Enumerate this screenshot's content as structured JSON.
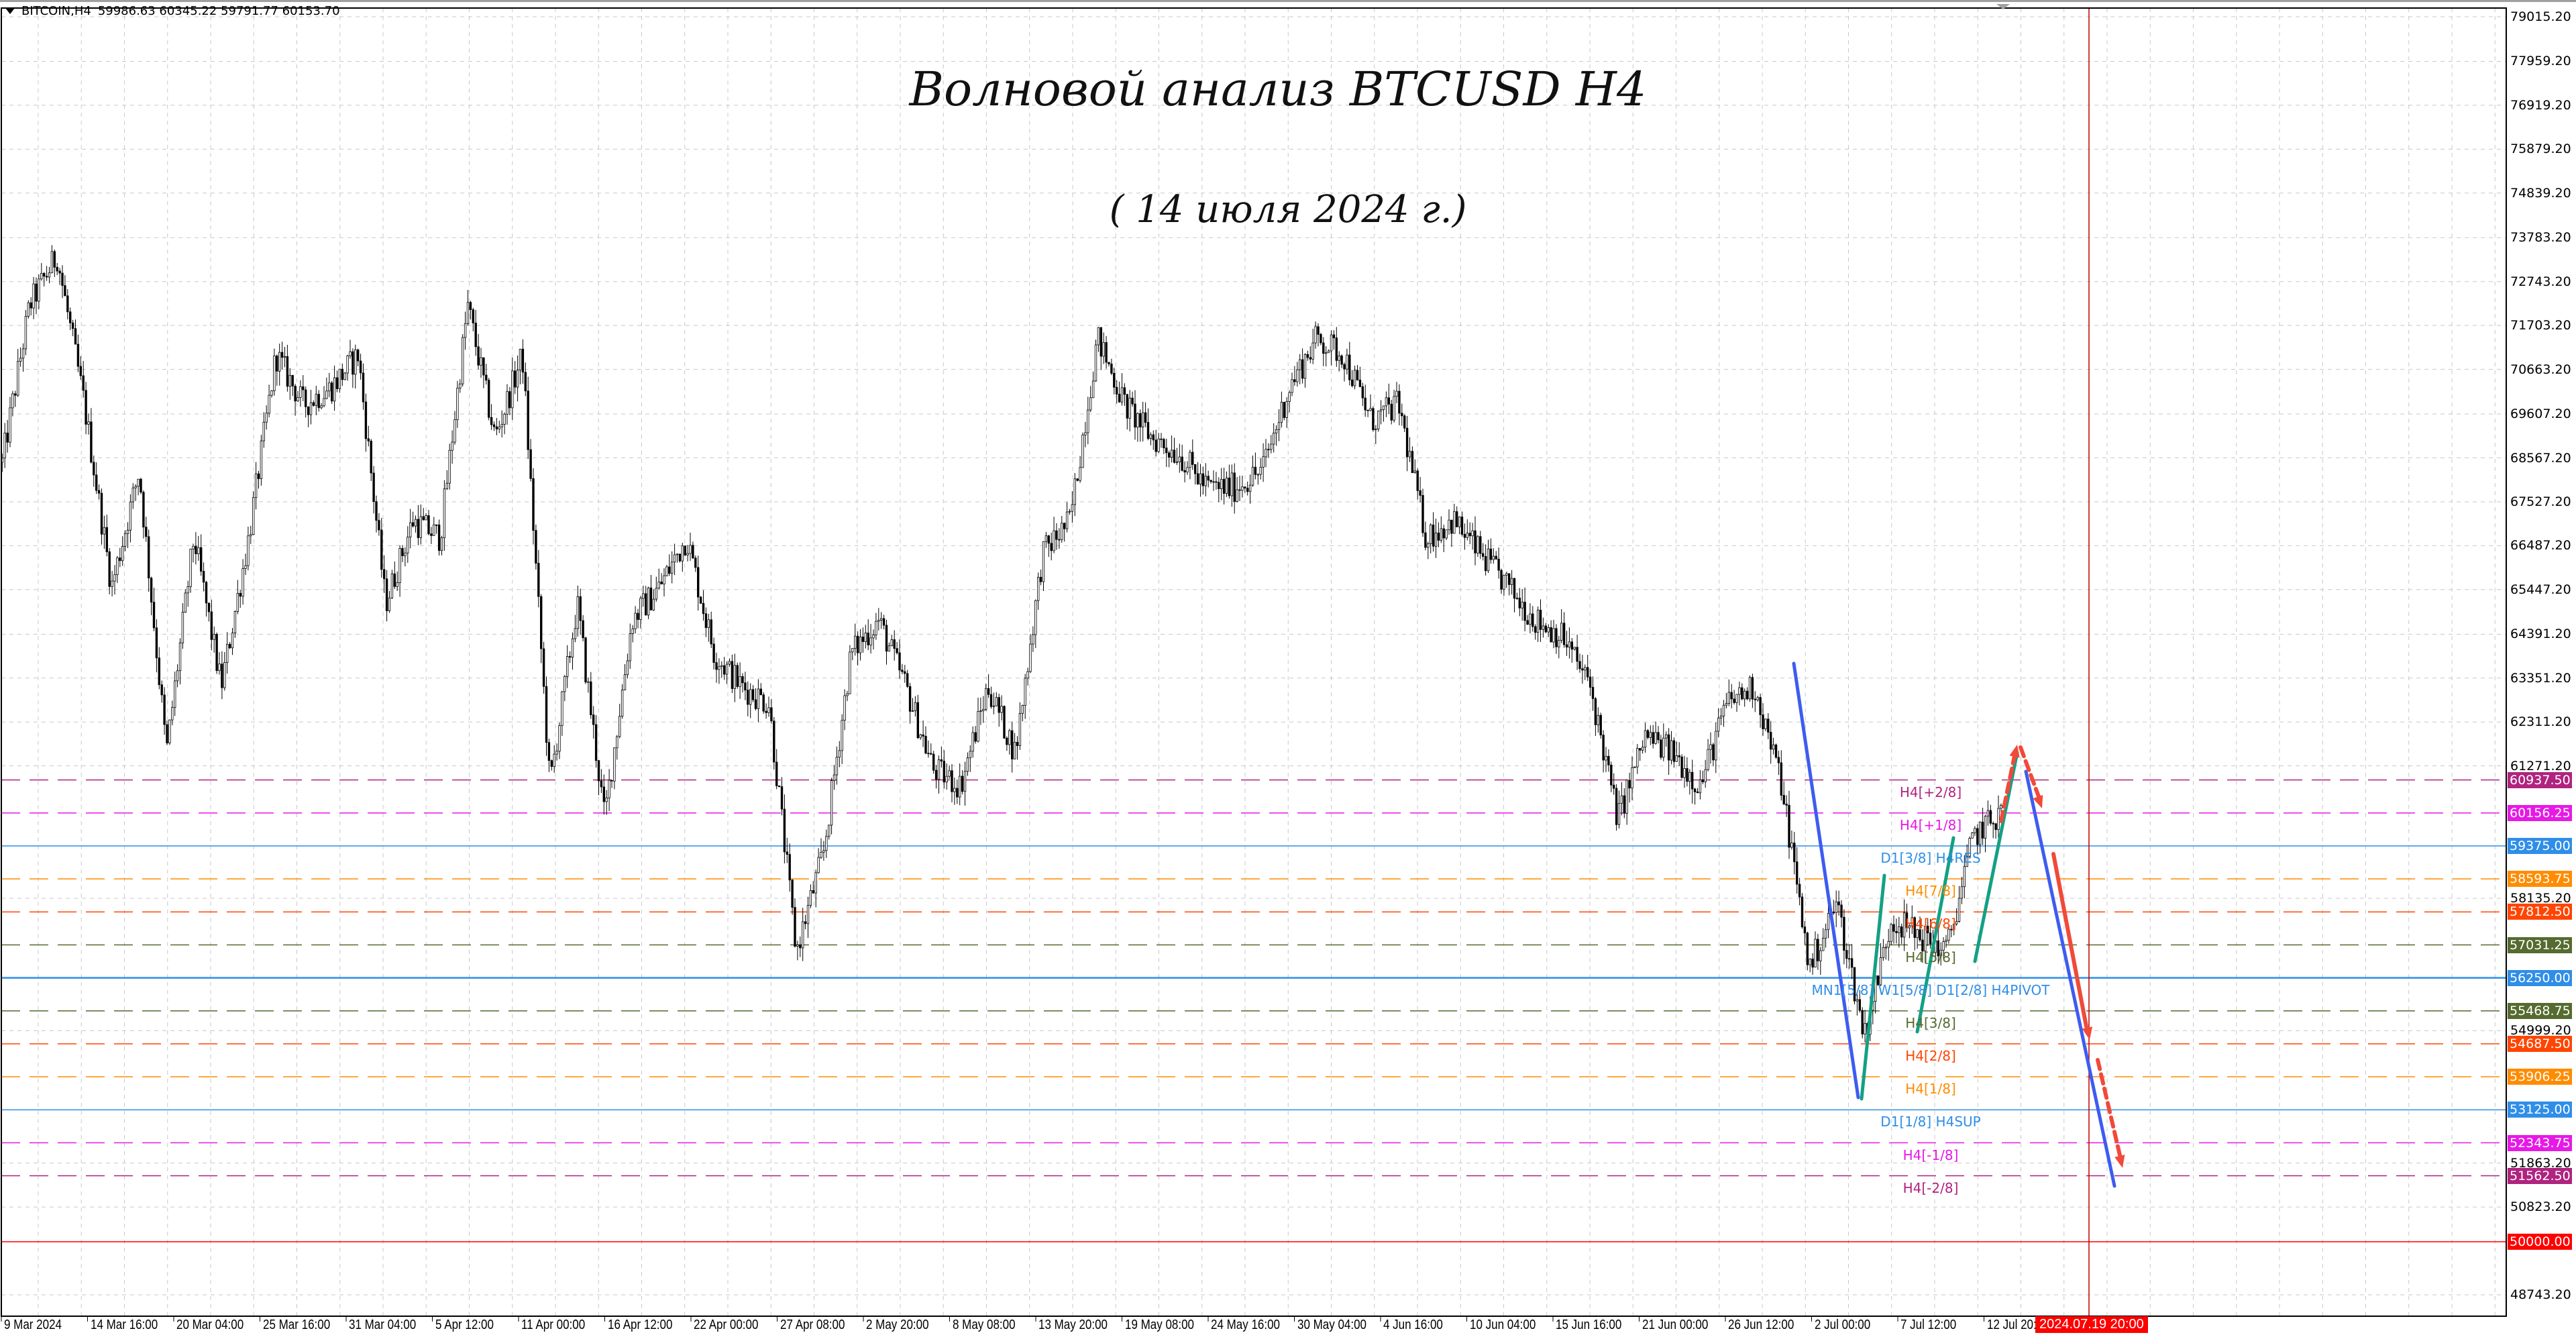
{
  "header": {
    "symbol": "BITCOIN,H4",
    "ohlc": "59986.63 60345.22 59791.77 60153.70",
    "menu_icon": "triangle-down-icon"
  },
  "annotations": {
    "title": "Волновой анализ BTCUSD H4",
    "subtitle": "( 14 июля 2024 г.)"
  },
  "price_axis": {
    "labels": [
      "79015.20",
      "77959.20",
      "76919.20",
      "75879.20",
      "74839.20",
      "73783.20",
      "72743.20",
      "71703.20",
      "70663.20",
      "69607.20",
      "68567.20",
      "67527.20",
      "66487.20",
      "65447.20",
      "64391.20",
      "63351.20",
      "62311.20",
      "61271.20",
      "58135.20",
      "54999.20",
      "51863.20",
      "50823.20",
      "48743.20"
    ]
  },
  "levels": [
    {
      "price": "60937.50",
      "label": "H4[+2/8]",
      "color": "#b0237f",
      "style": "dashed"
    },
    {
      "price": "60156.25",
      "label": "H4[+1/8]",
      "color": "#e619e6",
      "style": "dashed"
    },
    {
      "price": "59375.00",
      "label": "D1[3/8] H4RES",
      "color": "#2f8ee8",
      "style": "solid"
    },
    {
      "price": "58593.75",
      "label": "H4[7/8]",
      "color": "#ff8c00",
      "style": "dashed"
    },
    {
      "price": "57812.50",
      "label": "H4[6/8]",
      "color": "#ff4500",
      "style": "dashed"
    },
    {
      "price": "57031.25",
      "label": "H4[5/8]",
      "color": "#556b2f",
      "style": "dashed"
    },
    {
      "price": "56250.00",
      "label": "MN1[5/8] W1[5/8] D1[2/8] H4PIVOT",
      "color": "#2f8ee8",
      "style": "solid"
    },
    {
      "price": "55468.75",
      "label": "H4[3/8]",
      "color": "#556b2f",
      "style": "dashed"
    },
    {
      "price": "54687.50",
      "label": "H4[2/8]",
      "color": "#ff4500",
      "style": "dashed"
    },
    {
      "price": "53906.25",
      "label": "H4[1/8]",
      "color": "#ff8c00",
      "style": "dashed"
    },
    {
      "price": "53125.00",
      "label": "D1[1/8] H4SUP",
      "color": "#2f8ee8",
      "style": "solid"
    },
    {
      "price": "52343.75",
      "label": "H4[-1/8]",
      "color": "#e619e6",
      "style": "dashed"
    },
    {
      "price": "51562.50",
      "label": "H4[-2/8]",
      "color": "#b0237f",
      "style": "dashed"
    },
    {
      "price": "50000.00",
      "label": "",
      "color": "#ff0000",
      "style": "solid"
    }
  ],
  "time_axis": {
    "labels": [
      "9 Mar 2024",
      "14 Mar 16:00",
      "20 Mar 04:00",
      "25 Mar 16:00",
      "31 Mar 04:00",
      "5 Apr 12:00",
      "11 Apr 00:00",
      "16 Apr 12:00",
      "22 Apr 00:00",
      "27 Apr 08:00",
      "2 May 20:00",
      "8 May 08:00",
      "13 May 20:00",
      "19 May 08:00",
      "24 May 16:00",
      "30 May 04:00",
      "4 Jun 16:00",
      "10 Jun 04:00",
      "15 Jun 16:00",
      "21 Jun 00:00",
      "26 Jun 12:00",
      "2 Jul 00:00",
      "7 Jul 12:00",
      "12 Jul 20:00"
    ],
    "cursor_time": "2024.07.19 20:00"
  },
  "chart_data": {
    "type": "candlestick",
    "close_path": [
      68454,
      72184,
      73362,
      69828,
      65510,
      68258,
      61584,
      66687,
      63154,
      66687,
      71006,
      69828,
      70222,
      71006,
      65117,
      67080,
      66687,
      72184,
      69043,
      71006,
      60799,
      65117,
      60014,
      64724,
      65510,
      66687,
      63939,
      63154,
      62761,
      56872,
      59228,
      63939,
      64724,
      63154,
      61191,
      60799,
      63154,
      61584,
      66295,
      67080,
      71399,
      69828,
      69043,
      68650,
      67865,
      67865,
      68258,
      70222,
      71399,
      71006,
      69436,
      69828,
      66687,
      67080,
      66295,
      65510,
      64724,
      64331,
      63154,
      60014,
      61977,
      61584,
      60799,
      62761,
      63154,
      60799,
      56479,
      58049,
      54909,
      57657,
      57264,
      56872,
      59620,
      60153
    ],
    "colors": {
      "bull": "#ffffff",
      "bear": "#000000",
      "wave_down": "#3d5cf0",
      "wave_up": "#14a085",
      "forecast": "#f04a3a",
      "cursor_line": "#c00000"
    }
  }
}
